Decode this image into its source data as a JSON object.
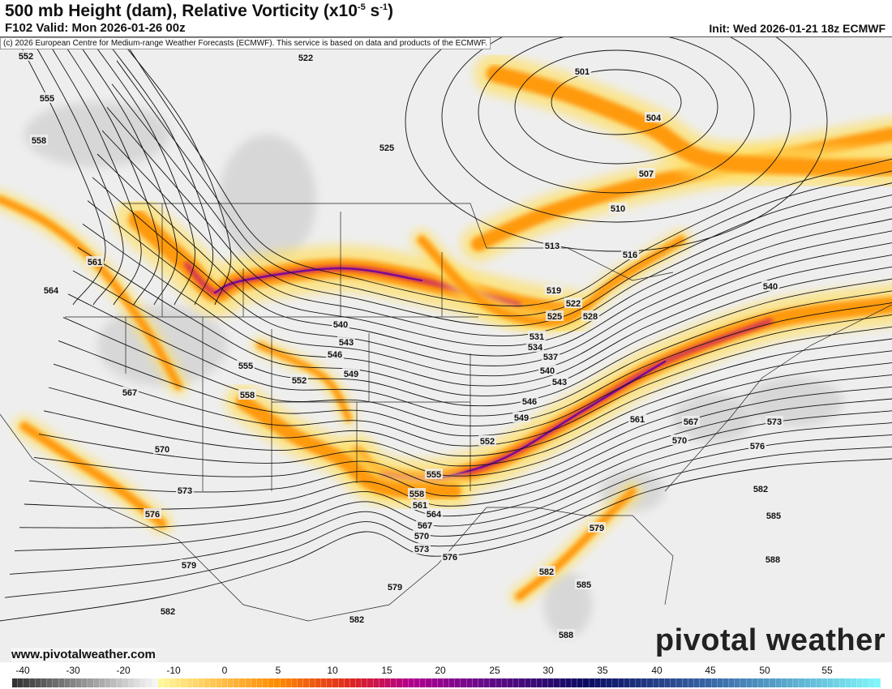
{
  "header": {
    "title": "500 mb Height (dam), Relative Vorticity (x10",
    "title_exp1": "-5",
    "title_unit": " s",
    "title_exp2": "-1",
    "title_close": ")",
    "valid": "F102 Valid: Mon 2026-01-26 00z",
    "init": "Init: Wed 2026-01-21 18z ECMWF"
  },
  "map": {
    "copyright": "(c) 2026 European Centre for Medium-range Weather Forecasts (ECMWF). This service is based on data and products of the ECMWF.",
    "website": "www.pivotalweather.com",
    "logo": "pivotal weather",
    "contour_labels": [
      "552",
      "555",
      "558",
      "561",
      "564",
      "567",
      "570",
      "573",
      "576",
      "579",
      "582",
      "522",
      "525",
      "501",
      "504",
      "507",
      "510",
      "513",
      "516",
      "519",
      "522",
      "525",
      "528",
      "531",
      "534",
      "537",
      "540",
      "543",
      "546",
      "549",
      "552",
      "555",
      "558",
      "561",
      "564",
      "567",
      "570",
      "573",
      "576",
      "579",
      "582",
      "540",
      "543",
      "546",
      "549",
      "552",
      "555",
      "558",
      "561",
      "567",
      "570",
      "573",
      "576",
      "582",
      "585",
      "588",
      "579",
      "582",
      "585",
      "588",
      "540"
    ]
  },
  "colorbar": {
    "ticks": [
      "-40",
      "-30",
      "-20",
      "-10",
      "0",
      "5",
      "10",
      "15",
      "20",
      "25",
      "30",
      "35",
      "40",
      "45",
      "50",
      "55"
    ],
    "colors": {
      "negative_dark": "#333333",
      "negative_light": "#f5f5f5",
      "low": "#fff79a",
      "mid": "#ff8c00",
      "red": "#dd2222",
      "magenta": "#b0008e",
      "purple": "#6a0a8a",
      "navy": "#0a0a60",
      "blue": "#3a6aa8",
      "cyan": "#80f6fa"
    }
  }
}
